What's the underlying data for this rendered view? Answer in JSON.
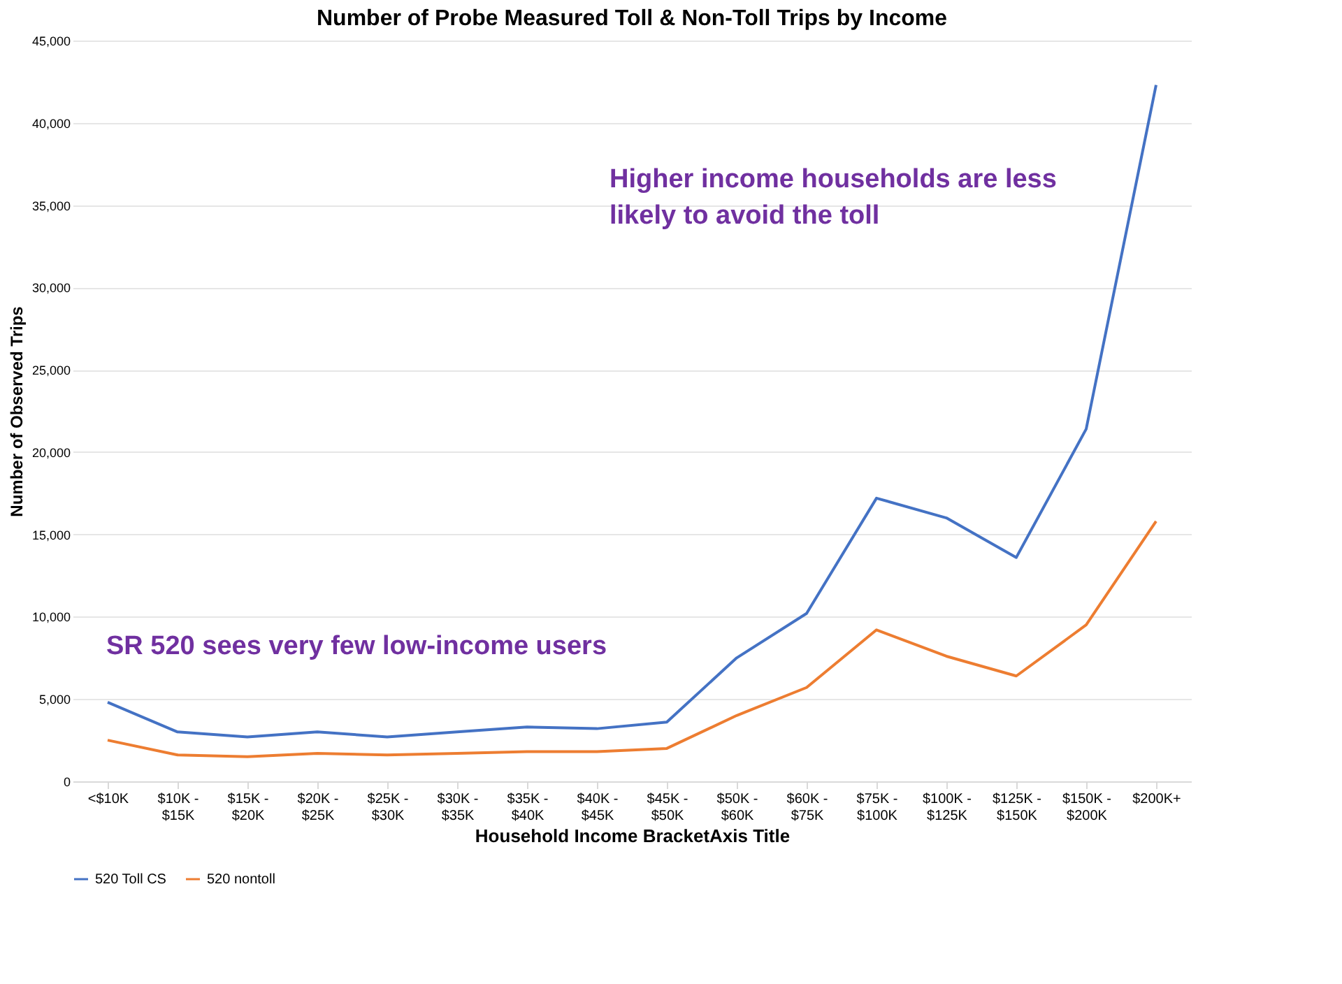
{
  "chart_data": {
    "type": "line",
    "title": "Number of Probe Measured Toll & Non-Toll Trips by Income",
    "xlabel": "Household Income BracketAxis Title",
    "ylabel": "Number of Observed Trips",
    "categories": [
      "<$10K",
      "$10K -\n$15K",
      "$15K -\n$20K",
      "$20K -\n$25K",
      "$25K -\n$30K",
      "$30K -\n$35K",
      "$35K -\n$40K",
      "$40K -\n$45K",
      "$45K -\n$50K",
      "$50K -\n$60K",
      "$60K -\n$75K",
      "$75K -\n$100K",
      "$100K -\n$125K",
      "$125K -\n$150K",
      "$150K -\n$200K",
      "$200K+"
    ],
    "series": [
      {
        "name": "520 Toll CS",
        "color": "#4472c4",
        "values": [
          4800,
          3000,
          2700,
          3000,
          2700,
          3000,
          3300,
          3200,
          3600,
          7500,
          10200,
          17200,
          16000,
          13600,
          21400,
          42300
        ]
      },
      {
        "name": "520 nontoll",
        "color": "#ed7d31",
        "values": [
          2500,
          1600,
          1500,
          1700,
          1600,
          1700,
          1800,
          1800,
          2000,
          4000,
          5700,
          9200,
          7600,
          6400,
          9500,
          15800
        ]
      }
    ],
    "ylim": [
      0,
      45000
    ],
    "yticks": [
      {
        "value": 0,
        "label": "0"
      },
      {
        "value": 5000,
        "label": "5,000"
      },
      {
        "value": 10000,
        "label": "10,000"
      },
      {
        "value": 15000,
        "label": "15,000"
      },
      {
        "value": 20000,
        "label": "20,000"
      },
      {
        "value": 25000,
        "label": "25,000"
      },
      {
        "value": 30000,
        "label": "30,000"
      },
      {
        "value": 35000,
        "label": "35,000"
      },
      {
        "value": 40000,
        "label": "40,000"
      },
      {
        "value": 45000,
        "label": "45,000"
      }
    ],
    "grid": "y",
    "legend": "bottom",
    "marker": "none",
    "line_style": "solid",
    "annotations": [
      "Higher income households are less\nlikely to avoid the toll",
      "SR 520 sees very few low-income users"
    ]
  }
}
